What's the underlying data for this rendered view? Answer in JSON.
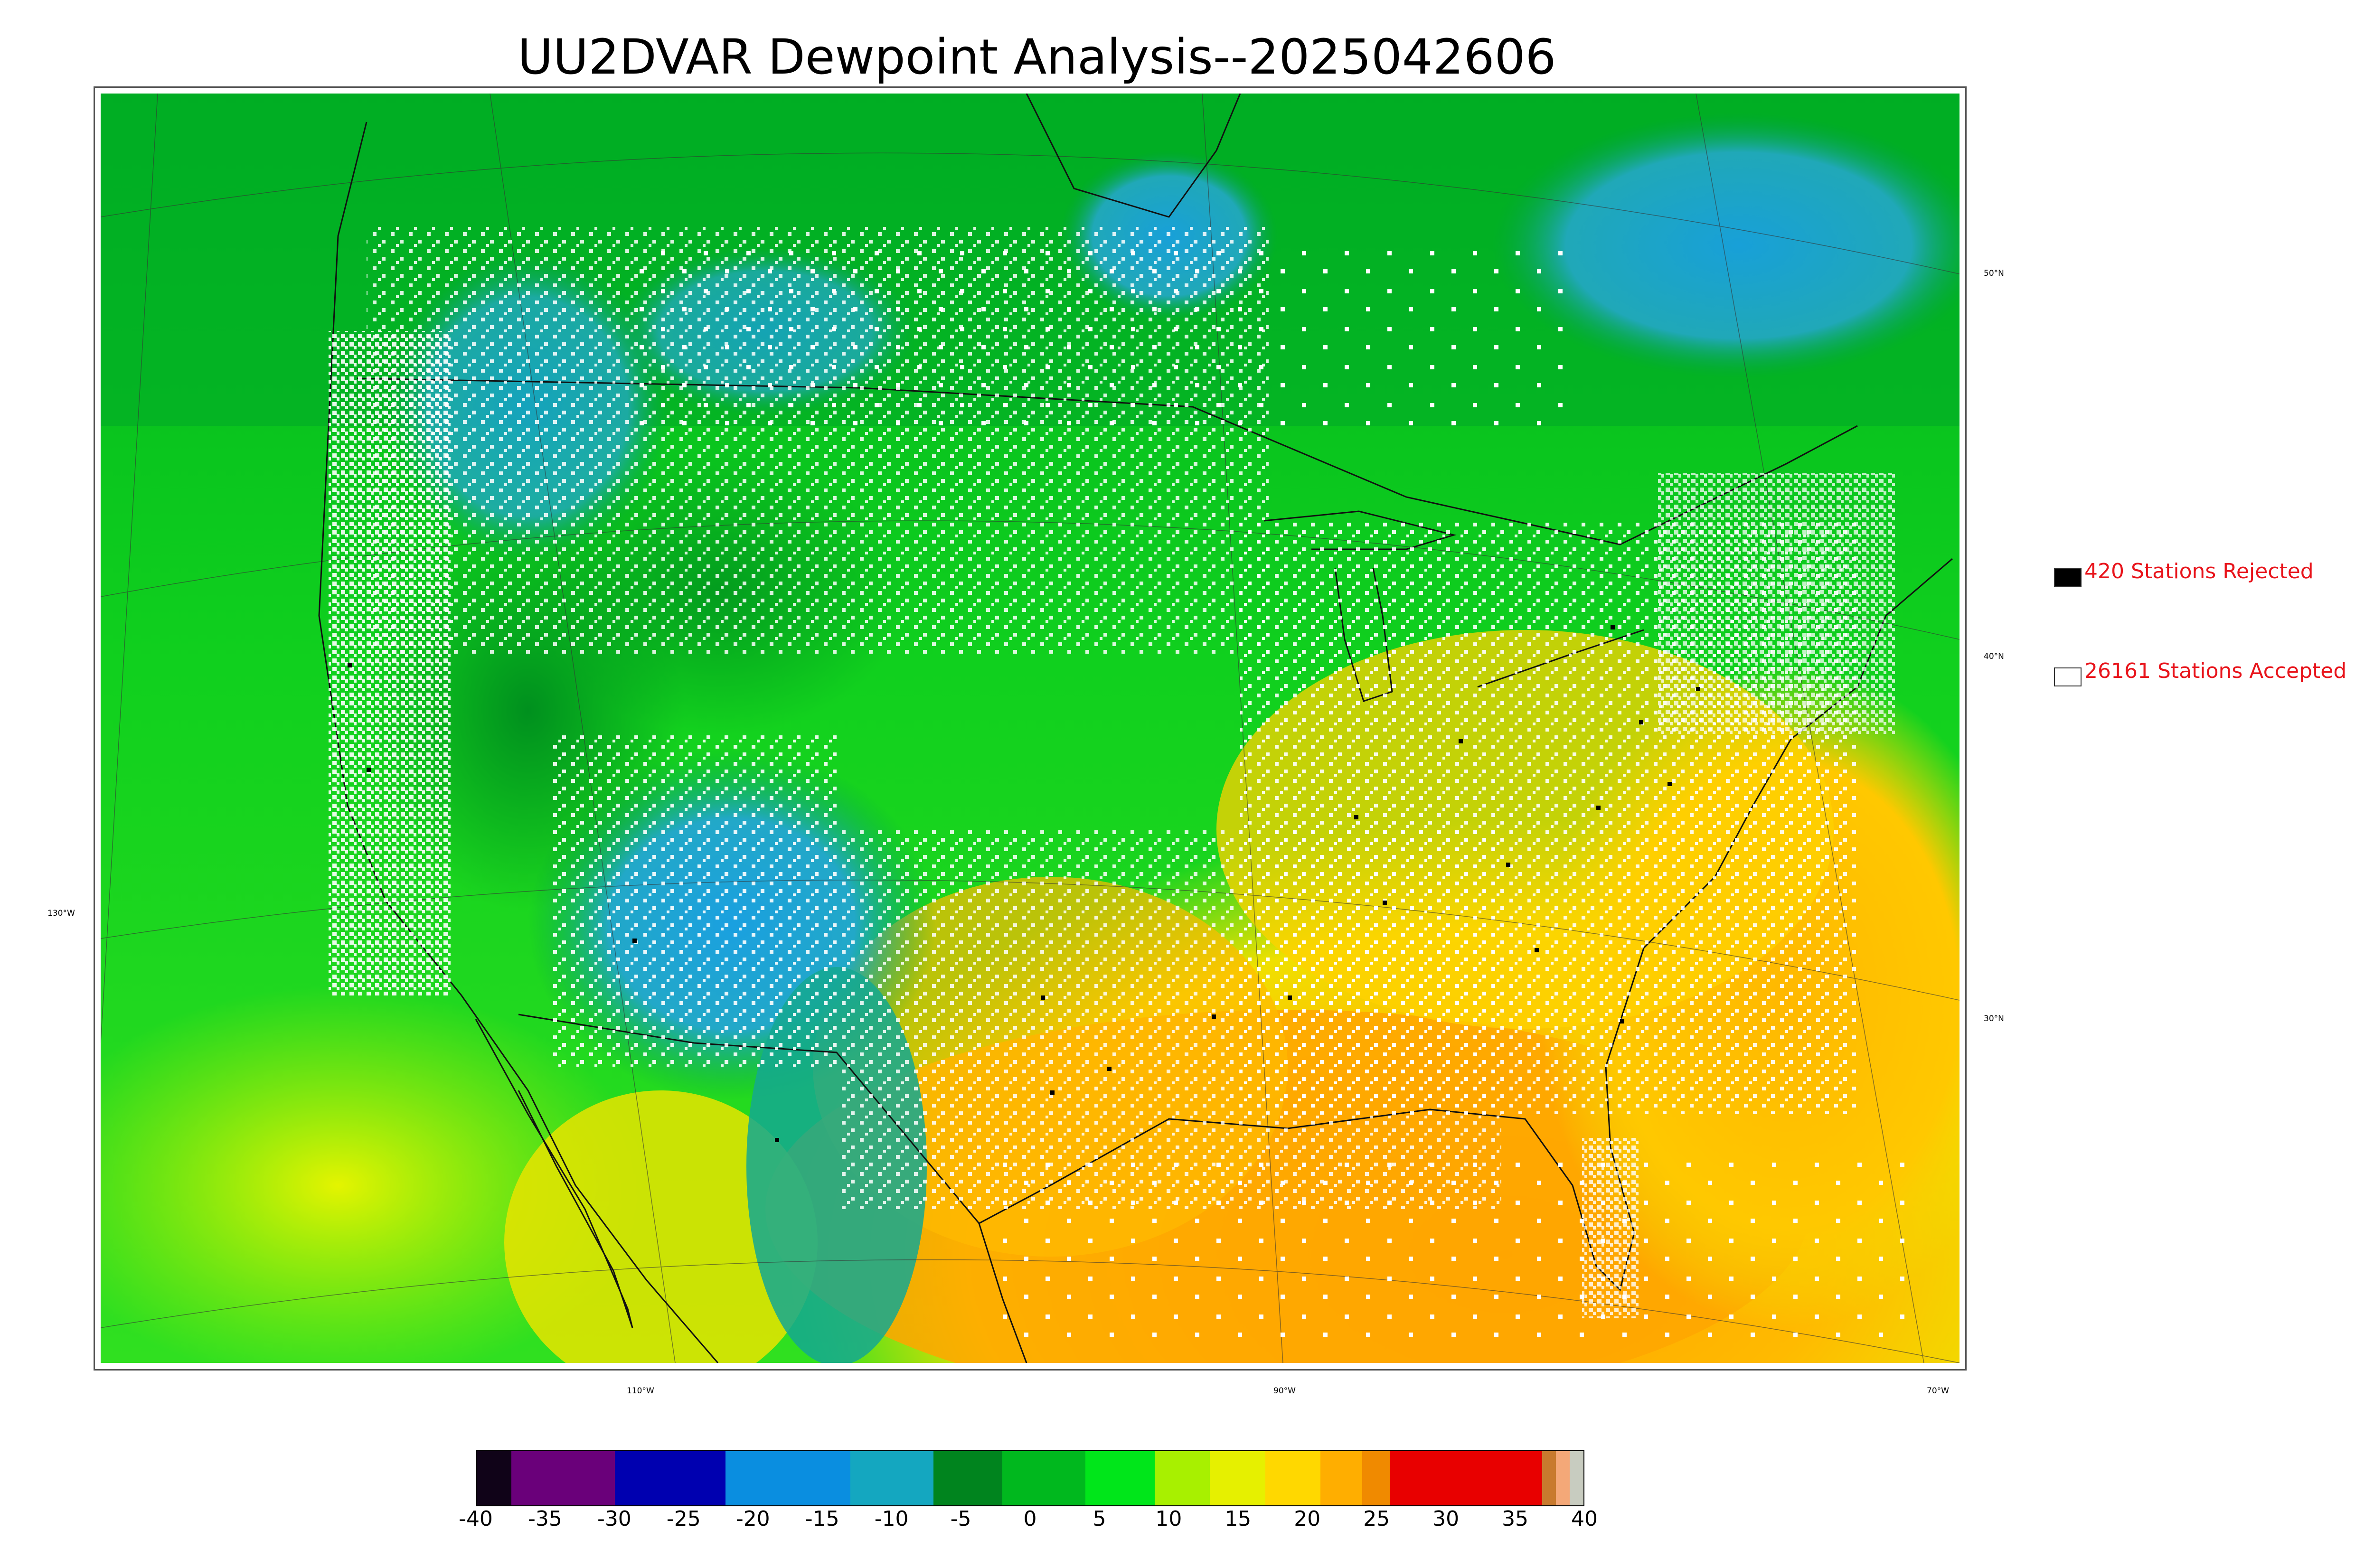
{
  "title": "UU2DVAR Dewpoint Analysis--2025042606",
  "legend": {
    "rejected_label": "420 Stations Rejected",
    "accepted_label": "26161 Stations Accepted",
    "rejected_color": "#000000",
    "accepted_color": "#ffffff"
  },
  "graticule_labels": {
    "lat": [
      "50°N",
      "40°N",
      "30°N"
    ],
    "lon": [
      "130°W",
      "110°W",
      "90°W",
      "70°W"
    ]
  },
  "colorbar": {
    "min": -40,
    "max": 40,
    "ticks": [
      "-40",
      "-35",
      "-30",
      "-25",
      "-20",
      "-15",
      "-10",
      "-5",
      "0",
      "5",
      "10",
      "15",
      "20",
      "25",
      "30",
      "35",
      "40"
    ],
    "bands": [
      {
        "from": -40,
        "to": -37.5,
        "color": "#100318"
      },
      {
        "from": -37.5,
        "to": -30,
        "color": "#6a007a"
      },
      {
        "from": -30,
        "to": -22,
        "color": "#0000b0"
      },
      {
        "from": -22,
        "to": -13,
        "color": "#0a8ee0"
      },
      {
        "from": -13,
        "to": -7,
        "color": "#14a7c0"
      },
      {
        "from": -7,
        "to": -2,
        "color": "#00841e"
      },
      {
        "from": -2,
        "to": 4,
        "color": "#00b81e"
      },
      {
        "from": 4,
        "to": 9,
        "color": "#00e61a"
      },
      {
        "from": 9,
        "to": 13,
        "color": "#a8f000"
      },
      {
        "from": 13,
        "to": 17,
        "color": "#e6f000"
      },
      {
        "from": 17,
        "to": 21,
        "color": "#ffd800"
      },
      {
        "from": 21,
        "to": 24,
        "color": "#ffae00"
      },
      {
        "from": 24,
        "to": 26,
        "color": "#f08a00"
      },
      {
        "from": 26,
        "to": 37,
        "color": "#e80000"
      },
      {
        "from": 37,
        "to": 38,
        "color": "#c87a2e"
      },
      {
        "from": 38,
        "to": 39,
        "color": "#f4a878"
      },
      {
        "from": 39,
        "to": 40,
        "color": "#c8ccc0"
      }
    ]
  },
  "colors": {
    "moist_gulf": "#ffaf00",
    "dry_southwest": "#2bb4c8",
    "mid_green": "#00c81e",
    "ocean_green": "#22e022"
  }
}
